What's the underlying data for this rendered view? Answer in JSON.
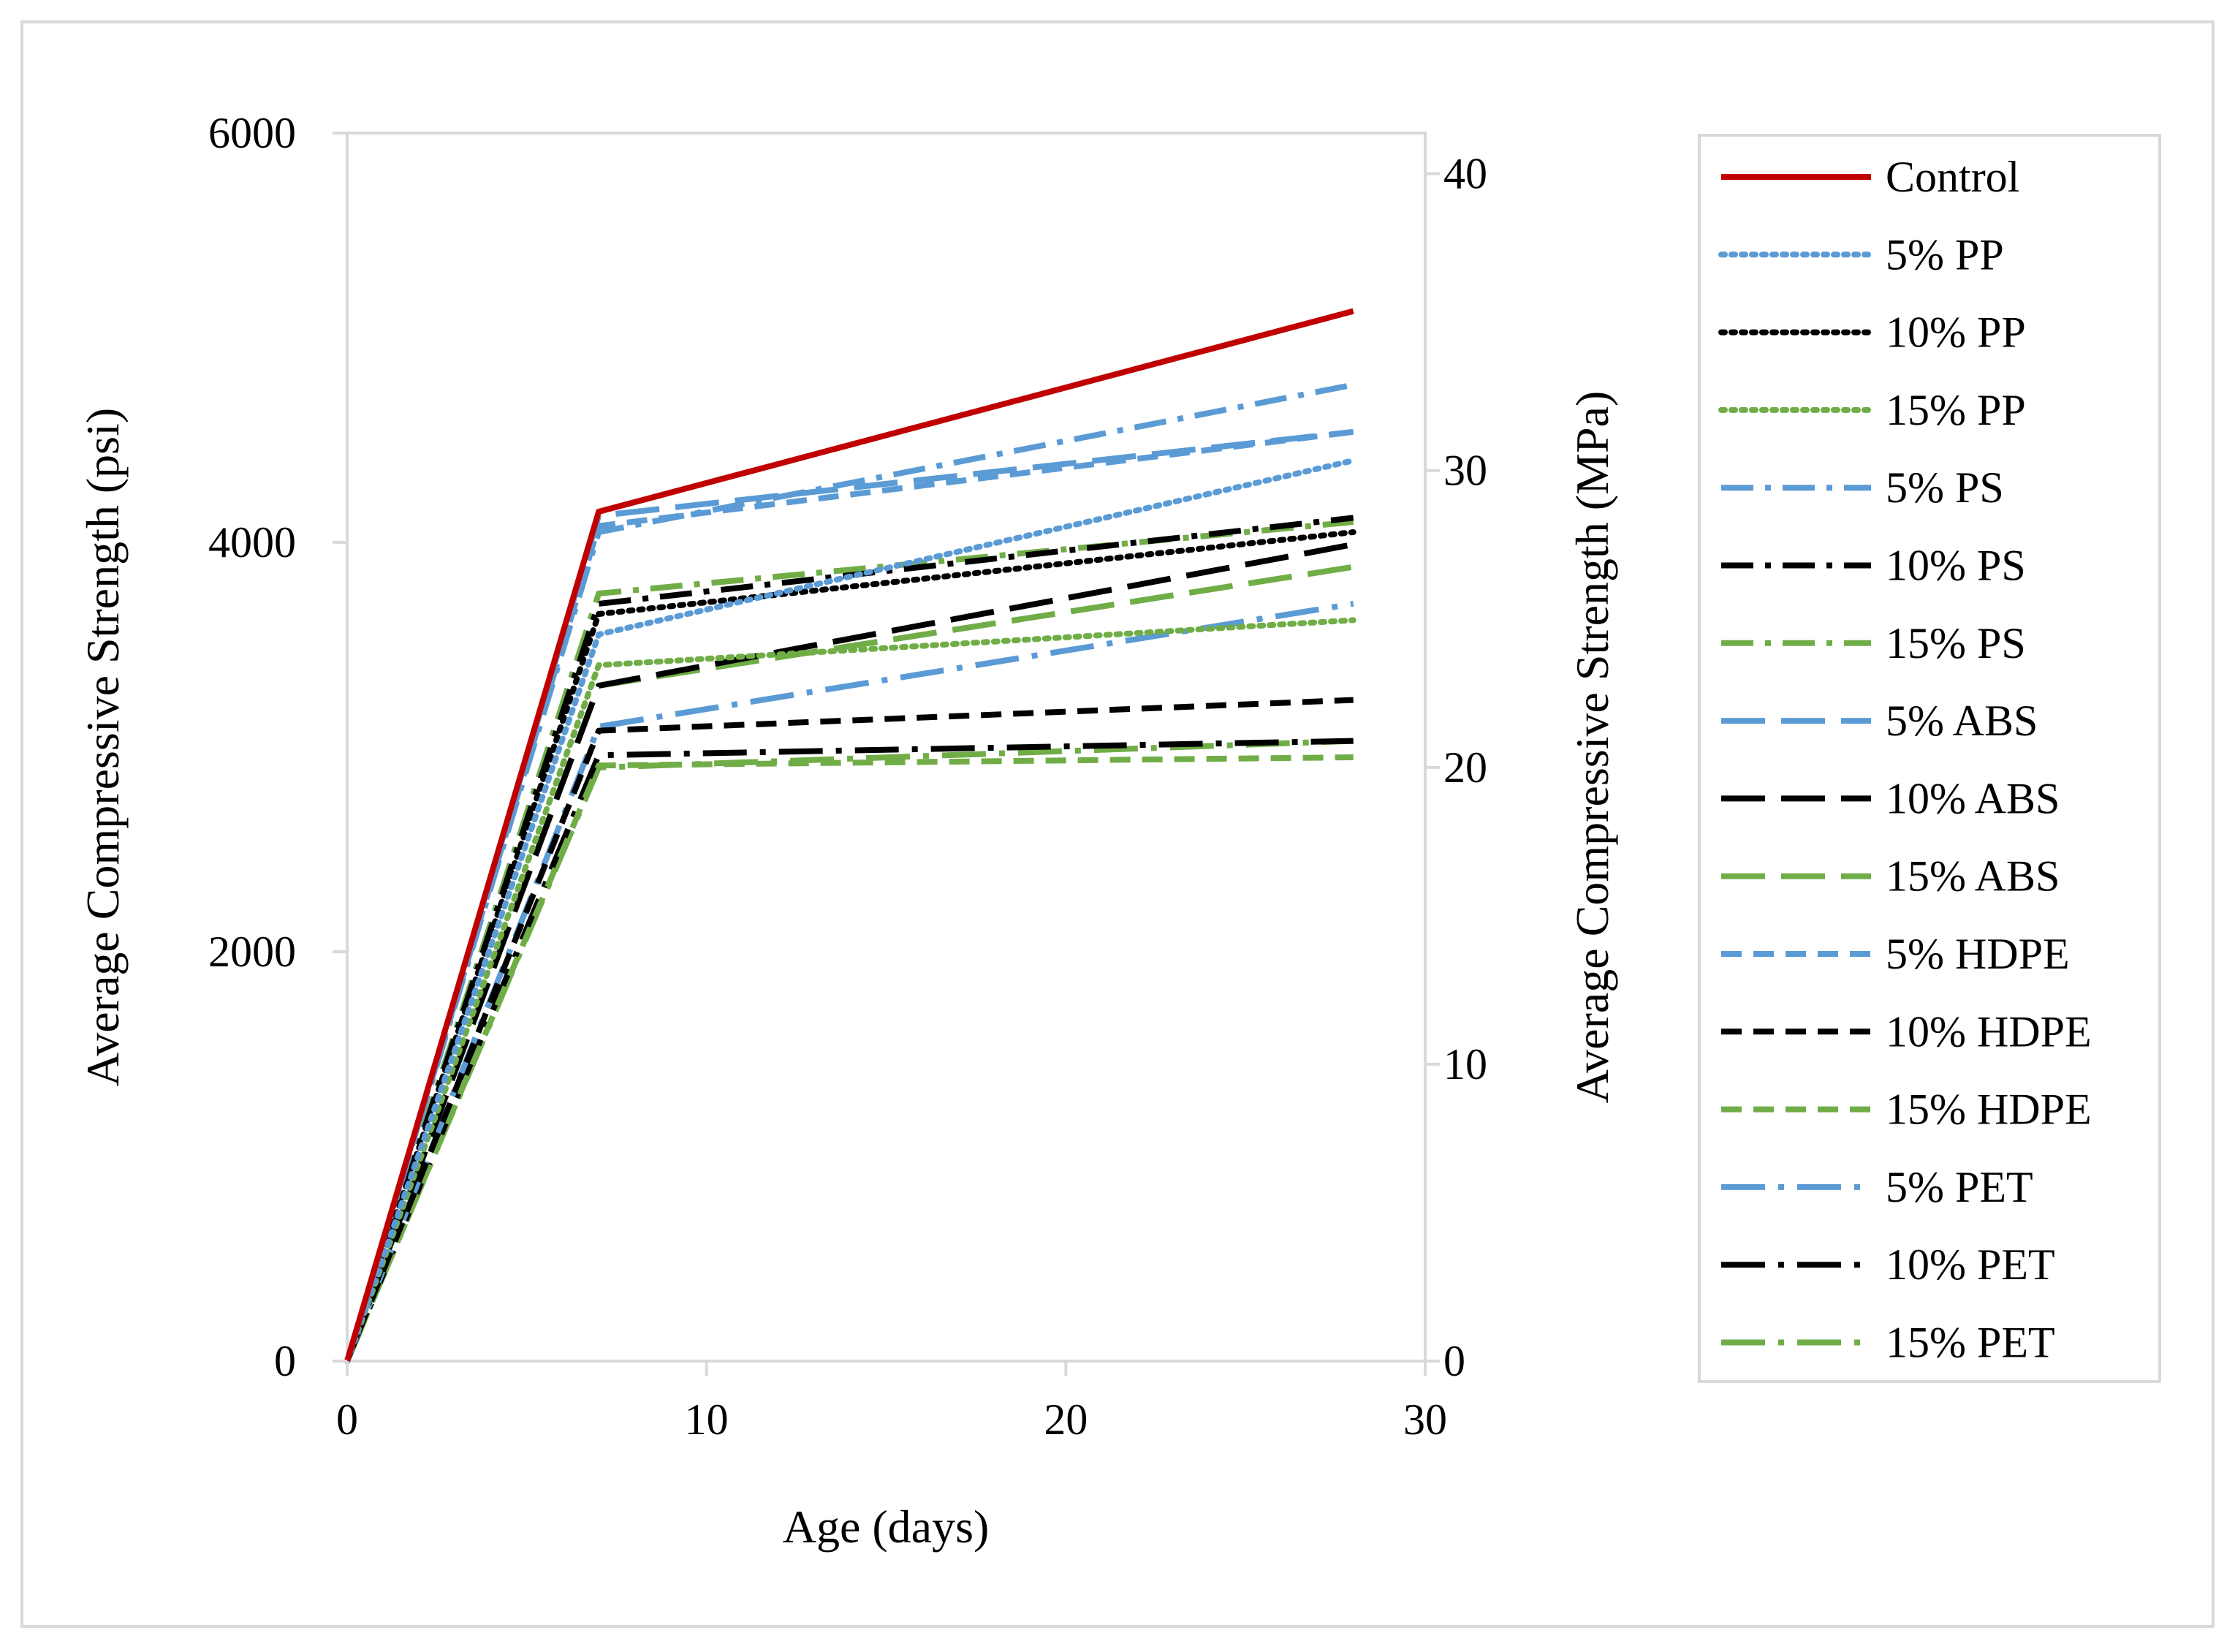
{
  "chart_data": {
    "type": "line",
    "title": "",
    "xlabel": "Age (days)",
    "ylabel": "Average Compressive Strength (psi)",
    "y2label": "Average Compressive Strength (MPa)",
    "xlim": [
      0,
      30
    ],
    "ylim": [
      0,
      6000
    ],
    "y2lim": [
      0,
      41.37
    ],
    "xticks": [
      "0",
      "10",
      "20",
      "30"
    ],
    "yticks": [
      "0",
      "2000",
      "4000",
      "6000"
    ],
    "y2ticks": [
      "0",
      "10",
      "20",
      "30",
      "40"
    ],
    "legend_position": "right",
    "x": [
      0,
      7,
      28
    ],
    "series": [
      {
        "name": "Control",
        "values": [
          0,
          4150,
          5130
        ],
        "color": "#C00000",
        "dash": "solid"
      },
      {
        "name": "5% PP",
        "values": [
          0,
          3550,
          4400
        ],
        "color": "#5B9BD5",
        "dash": "dot"
      },
      {
        "name": "10% PP",
        "values": [
          0,
          3650,
          4050
        ],
        "color": "#000000",
        "dash": "dot"
      },
      {
        "name": "15% PP",
        "values": [
          0,
          3400,
          3620
        ],
        "color": "#70AD47",
        "dash": "dot"
      },
      {
        "name": "5% PS",
        "values": [
          0,
          4050,
          4770
        ],
        "color": "#5B9BD5",
        "dash": "dashdot"
      },
      {
        "name": "10% PS",
        "values": [
          0,
          3700,
          4120
        ],
        "color": "#000000",
        "dash": "dashdot"
      },
      {
        "name": "15% PS",
        "values": [
          0,
          3750,
          4100
        ],
        "color": "#70AD47",
        "dash": "dashdot"
      },
      {
        "name": "5% ABS",
        "values": [
          0,
          4130,
          4540
        ],
        "color": "#5B9BD5",
        "dash": "longdash"
      },
      {
        "name": "10% ABS",
        "values": [
          0,
          3300,
          3990
        ],
        "color": "#000000",
        "dash": "longdash"
      },
      {
        "name": "15% ABS",
        "values": [
          0,
          3300,
          3880
        ],
        "color": "#70AD47",
        "dash": "longdash"
      },
      {
        "name": "5% HDPE",
        "values": [
          0,
          4080,
          4540
        ],
        "color": "#5B9BD5",
        "dash": "dash"
      },
      {
        "name": "10% HDPE",
        "values": [
          0,
          3080,
          3230
        ],
        "color": "#000000",
        "dash": "dash"
      },
      {
        "name": "15% HDPE",
        "values": [
          0,
          2910,
          2950
        ],
        "color": "#70AD47",
        "dash": "dash"
      },
      {
        "name": "5% PET",
        "values": [
          0,
          3100,
          3700
        ],
        "color": "#5B9BD5",
        "dash": "longdashdot"
      },
      {
        "name": "10% PET",
        "values": [
          0,
          2960,
          3030
        ],
        "color": "#000000",
        "dash": "longdashdot"
      },
      {
        "name": "15% PET",
        "values": [
          0,
          2900,
          3030
        ],
        "color": "#70AD47",
        "dash": "longdashdot"
      }
    ]
  }
}
